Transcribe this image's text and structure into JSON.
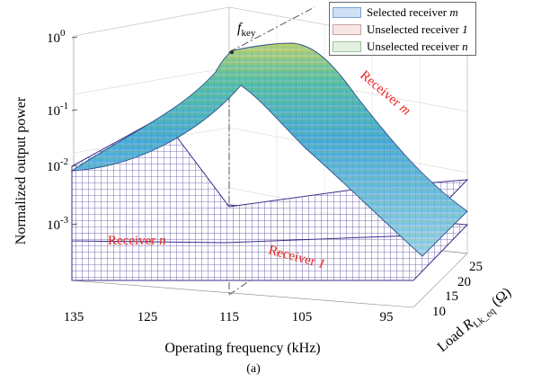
{
  "chart_data": {
    "type": "surface",
    "ylabel": "Normalized output power",
    "xlabel": "Operating frequency (kHz)",
    "zaxis_label_prefix": "Load ",
    "zaxis_label_symbol": "R",
    "zaxis_label_subscript": "Lk_eq",
    "zaxis_label_unit": " (Ω)",
    "caption": "(a)",
    "annotation": {
      "symbol": "f",
      "subscript": "key"
    },
    "x_ticks": [
      "135",
      "125",
      "115",
      "105",
      "95"
    ],
    "load_ticks": [
      "10",
      "15",
      "20",
      "25"
    ],
    "y_ticks": [
      {
        "base": "10",
        "exp": "0"
      },
      {
        "base": "10",
        "exp": "-1"
      },
      {
        "base": "10",
        "exp": "-2"
      },
      {
        "base": "10",
        "exp": "-3"
      }
    ],
    "log_scale": true,
    "grid": true,
    "legend_position": "top-right",
    "series": [
      {
        "name_text": "Selected receiver ",
        "name_var": "m",
        "color": "#cfe0f5",
        "edge": "#7aa2d8",
        "label": "Receiver m",
        "label_text": "Receiver ",
        "label_var": "m",
        "description": "peak ~1.0 at 115 kHz, falls to ~0.004 at 95 kHz and ~0.05 at 135 kHz"
      },
      {
        "name_text": "Unselected receiver ",
        "name_var": "1",
        "color": "#f7e6e6",
        "edge": "#c8a2a2",
        "label": "Receiver 1",
        "label_text": "Receiver ",
        "label_var": "1"
      },
      {
        "name_text": "Unselected receiver ",
        "name_var": "n",
        "color": "#e3f1e3",
        "edge": "#9cc39c",
        "label": "Receiver n",
        "label_text": "Receiver ",
        "label_var": "n"
      }
    ],
    "colors": {
      "mesh": "#4b3c9a",
      "label": "#e8231f"
    }
  }
}
